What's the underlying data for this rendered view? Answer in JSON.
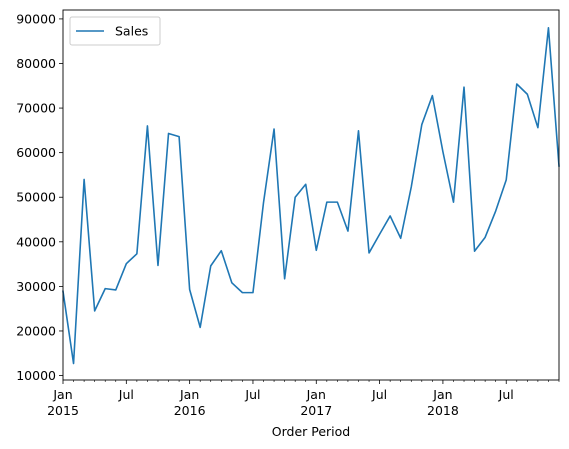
{
  "chart_data": {
    "type": "line",
    "title": "",
    "xlabel": "Order Period",
    "ylabel": "",
    "ylim": [
      9000,
      92000
    ],
    "yticks": [
      10000,
      20000,
      30000,
      40000,
      50000,
      60000,
      70000,
      80000,
      90000
    ],
    "ytick_labels": [
      "10000",
      "20000",
      "30000",
      "40000",
      "50000",
      "60000",
      "70000",
      "80000",
      "90000"
    ],
    "x_start": "2015-01",
    "x_end": "2018-12",
    "xticks_major": [
      {
        "month_index": 0,
        "label": "Jan",
        "sublabel": "2015"
      },
      {
        "month_index": 6,
        "label": "Jul",
        "sublabel": ""
      },
      {
        "month_index": 12,
        "label": "Jan",
        "sublabel": "2016"
      },
      {
        "month_index": 18,
        "label": "Jul",
        "sublabel": ""
      },
      {
        "month_index": 24,
        "label": "Jan",
        "sublabel": "2017"
      },
      {
        "month_index": 30,
        "label": "Jul",
        "sublabel": ""
      },
      {
        "month_index": 36,
        "label": "Jan",
        "sublabel": "2018"
      },
      {
        "month_index": 42,
        "label": "Jul",
        "sublabel": ""
      }
    ],
    "legend": {
      "position": "top-left",
      "entries": [
        "Sales"
      ]
    },
    "grid": false,
    "line_color": "#1f77b4",
    "series": [
      {
        "name": "Sales",
        "values": [
          28900,
          12700,
          54000,
          24500,
          29500,
          29200,
          35100,
          37300,
          66000,
          34700,
          64300,
          63600,
          29300,
          20800,
          34600,
          38000,
          30800,
          28600,
          28600,
          48800,
          65300,
          31700,
          50000,
          52900,
          38100,
          48900,
          48900,
          42400,
          64900,
          37500,
          41700,
          45800,
          40800,
          52300,
          66300,
          72800,
          60200,
          48900,
          74700,
          37900,
          41000,
          46900,
          53900,
          75400,
          73100,
          65600,
          88000,
          57000
        ]
      }
    ]
  }
}
